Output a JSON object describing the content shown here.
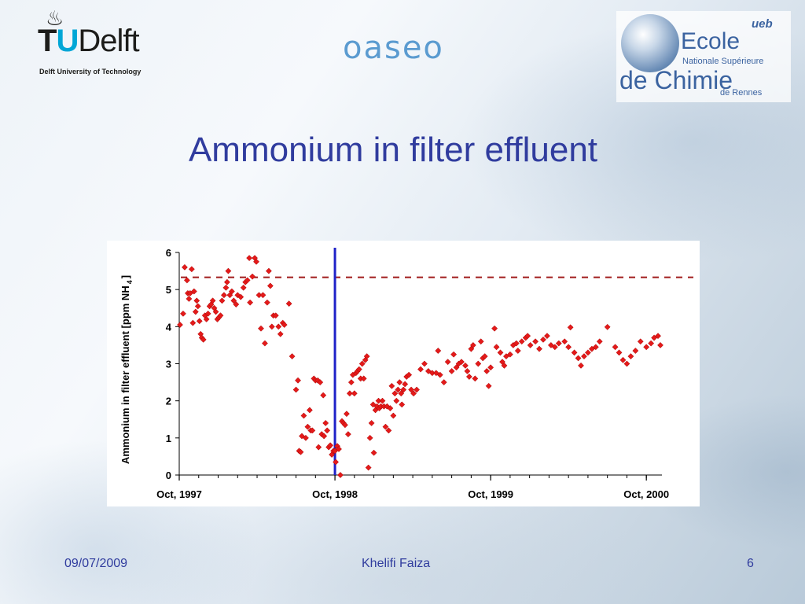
{
  "logos": {
    "tudelft": {
      "flame_glyph": "♨",
      "t": "T",
      "u": "U",
      "delft": "Delft",
      "subtitle": "Delft University of Technology"
    },
    "oaseo": {
      "text": "oaseo"
    },
    "ensc": {
      "ecole": "Ecole",
      "ueb": "ueb",
      "nationale": "Nationale Supérieure",
      "de_chimie": "de Chimie",
      "de_rennes": "de Rennes"
    }
  },
  "slide": {
    "title": "Ammonium in filter effluent"
  },
  "footer": {
    "date": "09/07/2009",
    "author": "Khelifi Faiza",
    "page": "6"
  },
  "chart_data": {
    "type": "scatter",
    "title": "",
    "ylabel": "Ammonium in filter effluent  [ppm NH",
    "ylabel_sub": "4",
    "ylabel_end": "]",
    "xlabel": "",
    "ylim": [
      0,
      6
    ],
    "yticks": [
      0,
      1,
      2,
      3,
      4,
      5,
      6
    ],
    "xlim": [
      0,
      1240
    ],
    "xticks": [
      {
        "value": 0,
        "label": "Oct, 1997"
      },
      {
        "value": 400,
        "label": "Oct, 1998"
      },
      {
        "value": 800,
        "label": "Oct, 1999"
      },
      {
        "value": 1200,
        "label": "Oct, 2000"
      }
    ],
    "x_units": "days since Oct 1997",
    "reference_line": {
      "y": 5.33,
      "style": "dashed",
      "color": "#a11c1c"
    },
    "vertical_marker": {
      "x": 400,
      "color": "#1f22c8"
    },
    "marker_color": "#e41a1a",
    "points": [
      [
        2,
        4.05
      ],
      [
        10,
        4.35
      ],
      [
        14,
        5.6
      ],
      [
        20,
        5.25
      ],
      [
        22,
        4.9
      ],
      [
        25,
        4.75
      ],
      [
        28,
        4.9
      ],
      [
        32,
        5.55
      ],
      [
        35,
        4.1
      ],
      [
        38,
        4.95
      ],
      [
        42,
        4.4
      ],
      [
        45,
        4.7
      ],
      [
        48,
        4.55
      ],
      [
        52,
        4.15
      ],
      [
        55,
        3.8
      ],
      [
        58,
        3.7
      ],
      [
        62,
        3.65
      ],
      [
        66,
        4.3
      ],
      [
        70,
        4.2
      ],
      [
        74,
        4.35
      ],
      [
        78,
        4.55
      ],
      [
        82,
        4.6
      ],
      [
        86,
        4.7
      ],
      [
        90,
        4.5
      ],
      [
        94,
        4.4
      ],
      [
        98,
        4.2
      ],
      [
        102,
        4.25
      ],
      [
        106,
        4.3
      ],
      [
        110,
        4.7
      ],
      [
        115,
        4.85
      ],
      [
        120,
        5.05
      ],
      [
        123,
        5.2
      ],
      [
        126,
        5.5
      ],
      [
        130,
        4.85
      ],
      [
        135,
        4.95
      ],
      [
        140,
        4.7
      ],
      [
        146,
        4.6
      ],
      [
        150,
        4.85
      ],
      [
        158,
        4.8
      ],
      [
        165,
        5.05
      ],
      [
        170,
        5.2
      ],
      [
        175,
        5.25
      ],
      [
        180,
        5.85
      ],
      [
        182,
        4.65
      ],
      [
        188,
        5.35
      ],
      [
        194,
        5.85
      ],
      [
        198,
        5.75
      ],
      [
        205,
        4.85
      ],
      [
        210,
        3.95
      ],
      [
        215,
        4.85
      ],
      [
        220,
        3.55
      ],
      [
        226,
        4.65
      ],
      [
        230,
        5.5
      ],
      [
        234,
        5.1
      ],
      [
        238,
        4.0
      ],
      [
        242,
        4.3
      ],
      [
        248,
        4.3
      ],
      [
        255,
        4.0
      ],
      [
        260,
        3.8
      ],
      [
        266,
        4.1
      ],
      [
        270,
        4.05
      ],
      [
        282,
        4.62
      ],
      [
        290,
        3.2
      ],
      [
        300,
        2.3
      ],
      [
        305,
        2.55
      ],
      [
        308,
        0.65
      ],
      [
        312,
        0.62
      ],
      [
        315,
        1.05
      ],
      [
        320,
        1.6
      ],
      [
        325,
        1.0
      ],
      [
        330,
        1.3
      ],
      [
        335,
        1.75
      ],
      [
        338,
        1.2
      ],
      [
        342,
        1.2
      ],
      [
        346,
        2.6
      ],
      [
        350,
        2.55
      ],
      [
        356,
        2.55
      ],
      [
        358,
        0.75
      ],
      [
        362,
        2.5
      ],
      [
        366,
        1.1
      ],
      [
        370,
        2.15
      ],
      [
        372,
        1.05
      ],
      [
        376,
        1.4
      ],
      [
        380,
        1.2
      ],
      [
        384,
        0.75
      ],
      [
        388,
        0.8
      ],
      [
        392,
        0.55
      ],
      [
        396,
        0.65
      ],
      [
        400,
        0.65
      ],
      [
        402,
        0.35
      ],
      [
        406,
        0.78
      ],
      [
        410,
        0.7
      ],
      [
        414,
        0.0
      ],
      [
        418,
        1.45
      ],
      [
        422,
        1.4
      ],
      [
        426,
        1.35
      ],
      [
        430,
        1.65
      ],
      [
        434,
        1.1
      ],
      [
        438,
        2.2
      ],
      [
        442,
        2.5
      ],
      [
        446,
        2.7
      ],
      [
        450,
        2.2
      ],
      [
        454,
        2.75
      ],
      [
        458,
        2.8
      ],
      [
        462,
        2.85
      ],
      [
        466,
        2.6
      ],
      [
        470,
        3.0
      ],
      [
        474,
        2.6
      ],
      [
        478,
        3.1
      ],
      [
        482,
        3.2
      ],
      [
        486,
        0.2
      ],
      [
        490,
        1.0
      ],
      [
        494,
        1.4
      ],
      [
        498,
        1.9
      ],
      [
        500,
        0.6
      ],
      [
        504,
        1.75
      ],
      [
        508,
        1.85
      ],
      [
        512,
        2.0
      ],
      [
        514,
        1.8
      ],
      [
        518,
        1.85
      ],
      [
        522,
        2.0
      ],
      [
        526,
        1.85
      ],
      [
        530,
        1.3
      ],
      [
        534,
        1.85
      ],
      [
        538,
        1.2
      ],
      [
        542,
        1.8
      ],
      [
        546,
        2.4
      ],
      [
        550,
        1.6
      ],
      [
        554,
        2.2
      ],
      [
        558,
        2.0
      ],
      [
        562,
        2.3
      ],
      [
        566,
        2.5
      ],
      [
        570,
        2.2
      ],
      [
        572,
        1.9
      ],
      [
        576,
        2.3
      ],
      [
        580,
        2.45
      ],
      [
        584,
        2.65
      ],
      [
        590,
        2.7
      ],
      [
        596,
        2.3
      ],
      [
        602,
        2.2
      ],
      [
        610,
        2.3
      ],
      [
        620,
        2.85
      ],
      [
        630,
        3.0
      ],
      [
        640,
        2.8
      ],
      [
        650,
        2.75
      ],
      [
        660,
        2.75
      ],
      [
        665,
        3.35
      ],
      [
        670,
        2.7
      ],
      [
        680,
        2.5
      ],
      [
        690,
        3.05
      ],
      [
        700,
        2.8
      ],
      [
        705,
        3.25
      ],
      [
        712,
        2.9
      ],
      [
        718,
        3.0
      ],
      [
        725,
        3.05
      ],
      [
        735,
        2.95
      ],
      [
        740,
        2.8
      ],
      [
        745,
        2.65
      ],
      [
        750,
        3.4
      ],
      [
        755,
        3.5
      ],
      [
        760,
        2.6
      ],
      [
        768,
        3.0
      ],
      [
        775,
        3.6
      ],
      [
        780,
        3.15
      ],
      [
        785,
        3.2
      ],
      [
        790,
        2.8
      ],
      [
        795,
        2.4
      ],
      [
        800,
        2.9
      ],
      [
        810,
        3.95
      ],
      [
        815,
        3.45
      ],
      [
        825,
        3.3
      ],
      [
        830,
        3.05
      ],
      [
        835,
        2.95
      ],
      [
        840,
        3.2
      ],
      [
        850,
        3.25
      ],
      [
        858,
        3.5
      ],
      [
        866,
        3.55
      ],
      [
        870,
        3.35
      ],
      [
        880,
        3.6
      ],
      [
        890,
        3.7
      ],
      [
        895,
        3.75
      ],
      [
        902,
        3.5
      ],
      [
        915,
        3.6
      ],
      [
        925,
        3.4
      ],
      [
        935,
        3.65
      ],
      [
        945,
        3.75
      ],
      [
        955,
        3.5
      ],
      [
        965,
        3.45
      ],
      [
        975,
        3.55
      ],
      [
        990,
        3.6
      ],
      [
        1000,
        3.45
      ],
      [
        1005,
        3.98
      ],
      [
        1015,
        3.3
      ],
      [
        1025,
        3.15
      ],
      [
        1032,
        2.95
      ],
      [
        1040,
        3.2
      ],
      [
        1050,
        3.3
      ],
      [
        1060,
        3.4
      ],
      [
        1070,
        3.45
      ],
      [
        1080,
        3.6
      ],
      [
        1100,
        3.99
      ],
      [
        1120,
        3.45
      ],
      [
        1130,
        3.3
      ],
      [
        1140,
        3.1
      ],
      [
        1150,
        3.0
      ],
      [
        1160,
        3.2
      ],
      [
        1172,
        3.35
      ],
      [
        1185,
        3.6
      ],
      [
        1200,
        3.45
      ],
      [
        1212,
        3.55
      ],
      [
        1220,
        3.7
      ],
      [
        1230,
        3.75
      ],
      [
        1236,
        3.5
      ]
    ]
  }
}
